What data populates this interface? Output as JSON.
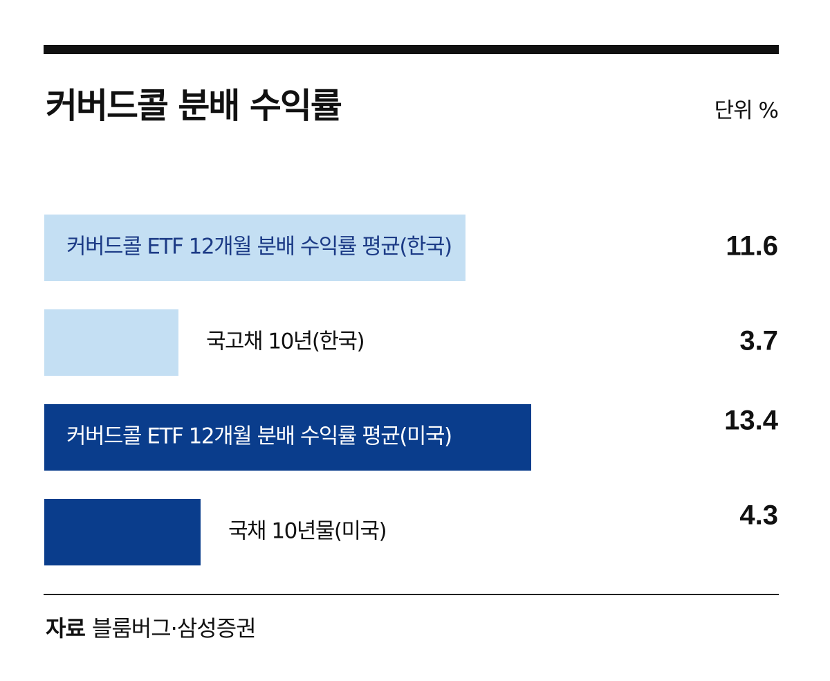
{
  "header": {
    "title": "커버드콜 분배 수익률",
    "unit": "단위 %"
  },
  "footer": {
    "source_label": "자료",
    "source_text": "블룸버그·삼성증권"
  },
  "colors": {
    "light_blue": "#c4dff3",
    "dark_blue": "#0a3d8c",
    "label_on_light": "#1c3b86",
    "label_on_dark": "#ffffff",
    "value_text": "#111111"
  },
  "chart_data": {
    "type": "bar",
    "orientation": "horizontal",
    "categories": [
      "커버드콜 ETF 12개월 분배 수익률 평균(한국)",
      "국고채 10년(한국)",
      "커버드콜 ETF 12개월 분배 수익률 평균(미국)",
      "국채 10년물(미국)"
    ],
    "values": [
      11.6,
      3.7,
      13.4,
      4.3
    ],
    "value_labels": [
      "11.6",
      "3.7",
      "13.4",
      "4.3"
    ],
    "bar_colors": [
      "#c4dff3",
      "#c4dff3",
      "#0a3d8c",
      "#0a3d8c"
    ],
    "label_position": [
      "inside",
      "outside",
      "inside",
      "outside"
    ],
    "title": "커버드콜 분배 수익률",
    "unit": "%",
    "xlim": [
      0,
      13.4
    ],
    "grid": false,
    "legend": "none"
  }
}
